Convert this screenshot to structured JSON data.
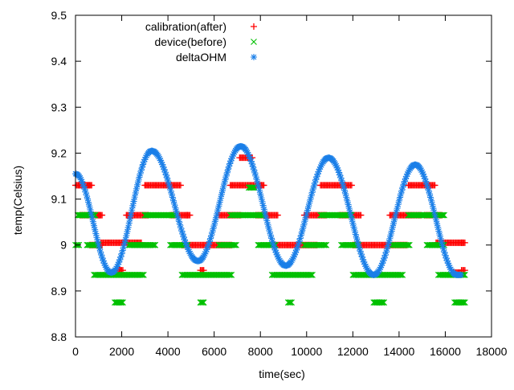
{
  "chart_data": {
    "type": "scatter",
    "title": "",
    "xlabel": "time(sec)",
    "ylabel": "temp(Celsius)",
    "xlim": [
      0,
      18000
    ],
    "ylim": [
      8.8,
      9.5
    ],
    "xticks": [
      0,
      2000,
      4000,
      6000,
      8000,
      10000,
      12000,
      14000,
      16000,
      18000
    ],
    "yticks": [
      8.8,
      8.9,
      9.0,
      9.1,
      9.2,
      9.3,
      9.4,
      9.5
    ],
    "xtick_labels": [
      "0",
      "2000",
      "4000",
      "6000",
      "8000",
      "10000",
      "12000",
      "14000",
      "16000",
      "18000"
    ],
    "ytick_labels": [
      "8.8",
      "8.9",
      "9",
      "9.1",
      "9.2",
      "9.3",
      "9.4",
      "9.5"
    ],
    "grid": false,
    "legend_position": "top-left",
    "series": [
      {
        "name": "calibration(after)",
        "marker": "plus",
        "color": "#ff0000",
        "points": [
          [
            0,
            9.13
          ],
          [
            150,
            9.13
          ],
          [
            300,
            9.13
          ],
          [
            450,
            9.13
          ],
          [
            550,
            9.13
          ],
          [
            200,
            9.065
          ],
          [
            400,
            9.065
          ],
          [
            600,
            9.065
          ],
          [
            750,
            9.065
          ],
          [
            900,
            9.065
          ],
          [
            1000,
            9.065
          ],
          [
            600,
            9.0
          ],
          [
            800,
            9.0
          ],
          [
            1000,
            9.0
          ],
          [
            1100,
            9.005
          ],
          [
            1300,
            9.005
          ],
          [
            1500,
            9.005
          ],
          [
            1700,
            9.005
          ],
          [
            1900,
            9.005
          ],
          [
            2100,
            9.005
          ],
          [
            2300,
            9.005
          ],
          [
            2500,
            9.005
          ],
          [
            2700,
            9.005
          ],
          [
            1800,
            8.945
          ],
          [
            1900,
            8.945
          ],
          [
            2200,
            9.065
          ],
          [
            2400,
            9.065
          ],
          [
            2600,
            9.065
          ],
          [
            2800,
            9.065
          ],
          [
            3000,
            9.065
          ],
          [
            3000,
            9.13
          ],
          [
            3200,
            9.13
          ],
          [
            3400,
            9.13
          ],
          [
            3600,
            9.13
          ],
          [
            3800,
            9.13
          ],
          [
            4000,
            9.13
          ],
          [
            4200,
            9.13
          ],
          [
            4400,
            9.13
          ],
          [
            4100,
            9.065
          ],
          [
            4300,
            9.065
          ],
          [
            4500,
            9.065
          ],
          [
            4700,
            9.065
          ],
          [
            4800,
            9.065
          ],
          [
            4600,
            9.0
          ],
          [
            4800,
            9.0
          ],
          [
            5000,
            9.0
          ],
          [
            5200,
            9.0
          ],
          [
            5400,
            9.0
          ],
          [
            5600,
            9.0
          ],
          [
            5800,
            9.0
          ],
          [
            6000,
            9.0
          ],
          [
            6200,
            9.0
          ],
          [
            6400,
            9.0
          ],
          [
            6600,
            9.0
          ],
          [
            5400,
            8.945
          ],
          [
            6200,
            9.065
          ],
          [
            6400,
            9.065
          ],
          [
            6600,
            9.065
          ],
          [
            6800,
            9.065
          ],
          [
            7000,
            9.065
          ],
          [
            6700,
            9.13
          ],
          [
            6900,
            9.13
          ],
          [
            7100,
            9.13
          ],
          [
            7300,
            9.13
          ],
          [
            7500,
            9.13
          ],
          [
            7700,
            9.13
          ],
          [
            7900,
            9.13
          ],
          [
            8000,
            9.13
          ],
          [
            7100,
            9.19
          ],
          [
            7300,
            9.19
          ],
          [
            7500,
            9.19
          ],
          [
            7800,
            9.065
          ],
          [
            8000,
            9.065
          ],
          [
            8200,
            9.065
          ],
          [
            8400,
            9.065
          ],
          [
            8600,
            9.065
          ],
          [
            8500,
            9.0
          ],
          [
            8700,
            9.0
          ],
          [
            8900,
            9.0
          ],
          [
            9100,
            9.0
          ],
          [
            9300,
            9.0
          ],
          [
            9500,
            9.0
          ],
          [
            9700,
            9.0
          ],
          [
            9900,
            9.0
          ],
          [
            10100,
            9.0
          ],
          [
            10300,
            9.0
          ],
          [
            9900,
            9.065
          ],
          [
            10100,
            9.065
          ],
          [
            10300,
            9.065
          ],
          [
            10500,
            9.065
          ],
          [
            10700,
            9.065
          ],
          [
            10600,
            9.13
          ],
          [
            10800,
            9.13
          ],
          [
            11000,
            9.13
          ],
          [
            11200,
            9.13
          ],
          [
            11400,
            9.13
          ],
          [
            11600,
            9.13
          ],
          [
            11800,
            9.13
          ],
          [
            11400,
            9.065
          ],
          [
            11600,
            9.065
          ],
          [
            11800,
            9.065
          ],
          [
            12000,
            9.065
          ],
          [
            12200,
            9.065
          ],
          [
            12000,
            9.0
          ],
          [
            12200,
            9.0
          ],
          [
            12400,
            9.0
          ],
          [
            12600,
            9.0
          ],
          [
            12800,
            9.0
          ],
          [
            13000,
            9.0
          ],
          [
            13200,
            9.0
          ],
          [
            13400,
            9.0
          ],
          [
            13600,
            9.0
          ],
          [
            13800,
            9.0
          ],
          [
            14000,
            9.0
          ],
          [
            14200,
            9.0
          ],
          [
            13600,
            9.065
          ],
          [
            13800,
            9.065
          ],
          [
            14000,
            9.065
          ],
          [
            14200,
            9.065
          ],
          [
            14400,
            9.065
          ],
          [
            14600,
            9.065
          ],
          [
            14800,
            9.065
          ],
          [
            14400,
            9.13
          ],
          [
            14600,
            9.13
          ],
          [
            14800,
            9.13
          ],
          [
            15000,
            9.13
          ],
          [
            15200,
            9.13
          ],
          [
            15400,
            9.13
          ],
          [
            15100,
            9.065
          ],
          [
            15300,
            9.065
          ],
          [
            15500,
            9.065
          ],
          [
            15700,
            9.065
          ],
          [
            15600,
            9.005
          ],
          [
            15800,
            9.005
          ],
          [
            16000,
            9.005
          ],
          [
            16200,
            9.005
          ],
          [
            16400,
            9.005
          ],
          [
            16600,
            9.005
          ],
          [
            16700,
            9.005
          ],
          [
            16300,
            8.94
          ],
          [
            16500,
            8.94
          ],
          [
            16700,
            8.945
          ]
        ]
      },
      {
        "name": "device(before)",
        "marker": "cross",
        "color": "#00c000",
        "points": [
          [
            0,
            9.0
          ],
          [
            100,
            9.065
          ],
          [
            200,
            9.065
          ],
          [
            300,
            9.065
          ],
          [
            400,
            9.065
          ],
          [
            500,
            9.065
          ],
          [
            600,
            9.065
          ],
          [
            700,
            9.065
          ],
          [
            500,
            9.0
          ],
          [
            700,
            9.0
          ],
          [
            850,
            9.0
          ],
          [
            800,
            8.935
          ],
          [
            1000,
            8.935
          ],
          [
            1200,
            8.935
          ],
          [
            1400,
            8.935
          ],
          [
            1600,
            8.935
          ],
          [
            1800,
            8.935
          ],
          [
            2000,
            8.935
          ],
          [
            2200,
            8.935
          ],
          [
            2400,
            8.935
          ],
          [
            2600,
            8.935
          ],
          [
            2800,
            8.935
          ],
          [
            1700,
            8.875
          ],
          [
            1800,
            8.875
          ],
          [
            1900,
            8.875
          ],
          [
            2300,
            9.0
          ],
          [
            2500,
            9.0
          ],
          [
            2700,
            9.0
          ],
          [
            2900,
            9.0
          ],
          [
            3100,
            9.0
          ],
          [
            3300,
            9.0
          ],
          [
            3000,
            9.065
          ],
          [
            3200,
            9.065
          ],
          [
            3400,
            9.065
          ],
          [
            3600,
            9.065
          ],
          [
            3800,
            9.065
          ],
          [
            4000,
            9.065
          ],
          [
            4200,
            9.065
          ],
          [
            4100,
            9.0
          ],
          [
            4300,
            9.0
          ],
          [
            4500,
            9.0
          ],
          [
            4700,
            9.0
          ],
          [
            4600,
            8.935
          ],
          [
            4800,
            8.935
          ],
          [
            5000,
            8.935
          ],
          [
            5200,
            8.935
          ],
          [
            5400,
            8.935
          ],
          [
            5600,
            8.935
          ],
          [
            5800,
            8.935
          ],
          [
            6000,
            8.935
          ],
          [
            6200,
            8.935
          ],
          [
            6400,
            8.935
          ],
          [
            6600,
            8.935
          ],
          [
            5400,
            8.875
          ],
          [
            6200,
            9.0
          ],
          [
            6400,
            9.0
          ],
          [
            6600,
            9.0
          ],
          [
            6800,
            9.0
          ],
          [
            6700,
            9.065
          ],
          [
            6900,
            9.065
          ],
          [
            7100,
            9.065
          ],
          [
            7300,
            9.065
          ],
          [
            7500,
            9.065
          ],
          [
            7700,
            9.065
          ],
          [
            7900,
            9.065
          ],
          [
            8000,
            9.065
          ],
          [
            7500,
            9.125
          ],
          [
            7600,
            9.125
          ],
          [
            7900,
            9.0
          ],
          [
            8100,
            9.0
          ],
          [
            8300,
            9.0
          ],
          [
            8500,
            9.0
          ],
          [
            8500,
            8.935
          ],
          [
            8700,
            8.935
          ],
          [
            8900,
            8.935
          ],
          [
            9100,
            8.935
          ],
          [
            9300,
            8.935
          ],
          [
            9500,
            8.935
          ],
          [
            9700,
            8.935
          ],
          [
            9900,
            8.935
          ],
          [
            10100,
            8.935
          ],
          [
            9200,
            8.875
          ],
          [
            9900,
            9.0
          ],
          [
            10100,
            9.0
          ],
          [
            10300,
            9.0
          ],
          [
            10500,
            9.0
          ],
          [
            10700,
            9.0
          ],
          [
            10600,
            9.065
          ],
          [
            10800,
            9.065
          ],
          [
            11000,
            9.065
          ],
          [
            11200,
            9.065
          ],
          [
            11400,
            9.065
          ],
          [
            11600,
            9.065
          ],
          [
            11800,
            9.065
          ],
          [
            11500,
            9.0
          ],
          [
            11700,
            9.0
          ],
          [
            11900,
            9.0
          ],
          [
            12100,
            9.0
          ],
          [
            12000,
            8.935
          ],
          [
            12200,
            8.935
          ],
          [
            12400,
            8.935
          ],
          [
            12600,
            8.935
          ],
          [
            12800,
            8.935
          ],
          [
            13000,
            8.935
          ],
          [
            13200,
            8.935
          ],
          [
            13400,
            8.935
          ],
          [
            13600,
            8.935
          ],
          [
            13800,
            8.935
          ],
          [
            14000,
            8.935
          ],
          [
            12900,
            8.875
          ],
          [
            13000,
            8.875
          ],
          [
            13100,
            8.875
          ],
          [
            13200,
            8.875
          ],
          [
            13700,
            9.0
          ],
          [
            13900,
            9.0
          ],
          [
            14100,
            9.0
          ],
          [
            14300,
            9.0
          ],
          [
            14400,
            9.065
          ],
          [
            14600,
            9.065
          ],
          [
            14800,
            9.065
          ],
          [
            15000,
            9.065
          ],
          [
            15200,
            9.065
          ],
          [
            15400,
            9.065
          ],
          [
            15600,
            9.065
          ],
          [
            15800,
            9.065
          ],
          [
            15200,
            9.0
          ],
          [
            15400,
            9.0
          ],
          [
            15600,
            9.0
          ],
          [
            15800,
            9.0
          ],
          [
            15700,
            8.935
          ],
          [
            15900,
            8.935
          ],
          [
            16100,
            8.935
          ],
          [
            16300,
            8.935
          ],
          [
            16500,
            8.935
          ],
          [
            16700,
            8.935
          ],
          [
            16400,
            8.875
          ],
          [
            16500,
            8.875
          ],
          [
            16600,
            8.875
          ],
          [
            16700,
            8.875
          ]
        ]
      },
      {
        "name": "deltaOHM",
        "marker": "star",
        "color": "#1a7fe8",
        "wave": {
          "x_start": 0,
          "x_end": 16700,
          "step": 40,
          "peaks": [
            [
              3300,
              9.205
            ],
            [
              7150,
              9.215
            ],
            [
              10950,
              9.19
            ],
            [
              14700,
              9.175
            ]
          ],
          "troughs": [
            [
              1550,
              8.94
            ],
            [
              5300,
              8.965
            ],
            [
              9100,
              8.955
            ],
            [
              12900,
              8.935
            ],
            [
              16500,
              8.935
            ]
          ],
          "start_value": 9.155
        }
      }
    ]
  }
}
